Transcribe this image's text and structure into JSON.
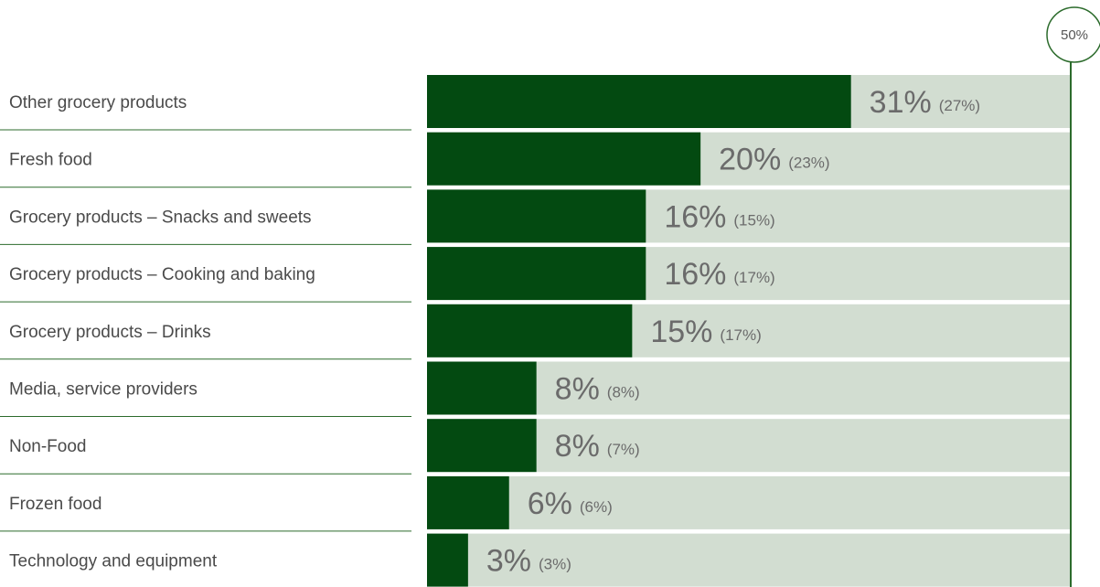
{
  "chart_data": {
    "type": "bar",
    "orientation": "horizontal",
    "categories": [
      "Other grocery products",
      "Fresh food",
      "Grocery products – Snacks and sweets",
      "Grocery products – Cooking and baking",
      "Grocery products – Drinks",
      "Media, service providers",
      "Non-Food",
      "Frozen food",
      "Technology and equipment"
    ],
    "series": [
      {
        "values": [
          31,
          20,
          16,
          16,
          15,
          8,
          8,
          6,
          3
        ]
      },
      {
        "values": [
          27,
          23,
          15,
          17,
          17,
          8,
          7,
          6,
          3
        ]
      }
    ],
    "value_labels": [
      "31%",
      "20%",
      "16%",
      "16%",
      "15%",
      "8%",
      "8%",
      "6%",
      "3%"
    ],
    "secondary_labels": [
      "(27%)",
      "(23%)",
      "(15%)",
      "(17%)",
      "(17%)",
      "(8%)",
      "(7%)",
      "(6%)",
      "(3%)"
    ],
    "xlim": [
      0,
      47
    ],
    "max_marker_label": "50%",
    "title": "",
    "xlabel": "",
    "ylabel": "",
    "grid": false,
    "colors": {
      "bar": "#034a11",
      "track": "#d2ddd1",
      "axis": "#2c6b2c",
      "separator": "#2c6b2c"
    }
  }
}
